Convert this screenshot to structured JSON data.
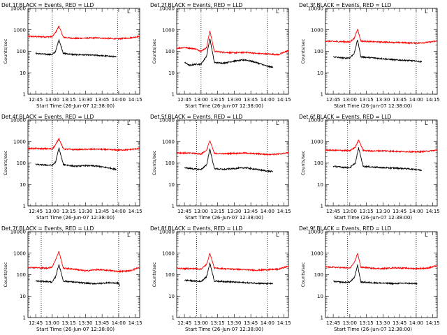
{
  "chart_data": [
    {
      "type": "line",
      "title": "Det 1f BLACK = Events, RED = LLD",
      "xlabel": "Start Time (26-Jun-07 12:38:00)",
      "ylabel": "Counts/sec",
      "xticks": [
        "12:45",
        "13:00",
        "13:15",
        "13:30",
        "13:45",
        "14:00",
        "14:15"
      ],
      "yticks": [
        "1",
        "10",
        "100",
        "1000",
        "10000"
      ],
      "xlim": [
        "12:38",
        "14:19"
      ],
      "ylim": [
        1,
        10000
      ],
      "yscale": "log",
      "vlines": [
        "13:00",
        "13:59"
      ],
      "marker": "L",
      "series": [
        {
          "color": "#ff0000",
          "x": [
            "12:38",
            "12:45",
            "12:55",
            "13:00",
            "13:03",
            "13:06",
            "13:10",
            "13:20",
            "13:30",
            "13:40",
            "13:50",
            "14:00",
            "14:10",
            "14:19"
          ],
          "values": [
            500,
            480,
            470,
            480,
            750,
            1500,
            450,
            400,
            410,
            420,
            400,
            380,
            420,
            500
          ]
        },
        {
          "color": "#000000",
          "x": [
            "12:45",
            "12:55",
            "13:00",
            "13:03",
            "13:06",
            "13:10",
            "13:20",
            "13:30",
            "13:40",
            "13:50",
            "13:58"
          ],
          "values": [
            80,
            72,
            70,
            100,
            350,
            80,
            70,
            68,
            65,
            60,
            55
          ]
        }
      ]
    },
    {
      "type": "line",
      "title": "Det 2f BLACK = Events, RED = LLD",
      "xlabel": "Start Time (26-Jun-07 12:38:00)",
      "ylabel": "Counts/sec",
      "xticks": [
        "12:45",
        "13:00",
        "13:15",
        "13:30",
        "13:45",
        "14:00",
        "14:15"
      ],
      "yticks": [
        "1",
        "10",
        "100",
        "1000",
        "10000"
      ],
      "xlim": [
        "12:38",
        "14:19"
      ],
      "ylim": [
        1,
        10000
      ],
      "yscale": "log",
      "vlines": [
        "13:00",
        "14:00"
      ],
      "marker": "L",
      "series": [
        {
          "color": "#ff0000",
          "x": [
            "12:38",
            "12:45",
            "12:55",
            "13:00",
            "13:05",
            "13:08",
            "13:12",
            "13:20",
            "13:30",
            "13:40",
            "13:50",
            "14:00",
            "14:10",
            "14:19"
          ],
          "values": [
            140,
            150,
            130,
            100,
            150,
            900,
            100,
            90,
            85,
            90,
            80,
            75,
            70,
            110
          ]
        },
        {
          "color": "#000000",
          "x": [
            "12:45",
            "12:50",
            "12:55",
            "13:00",
            "13:05",
            "13:08",
            "13:12",
            "13:20",
            "13:30",
            "13:40",
            "13:50",
            "14:00",
            "14:05"
          ],
          "values": [
            30,
            22,
            25,
            25,
            60,
            400,
            30,
            28,
            35,
            40,
            30,
            20,
            18
          ]
        }
      ]
    },
    {
      "type": "line",
      "title": "Det 3f BLACK = Events, RED = LLD",
      "xlabel": "Start Time (26-Jun-07 12:38:00)",
      "ylabel": "Counts/sec",
      "xticks": [
        "12:45",
        "13:00",
        "13:15",
        "13:30",
        "13:45",
        "14:00",
        "14:15"
      ],
      "yticks": [
        "1",
        "10",
        "100",
        "1000",
        "10000"
      ],
      "xlim": [
        "12:38",
        "14:19"
      ],
      "ylim": [
        1,
        10000
      ],
      "yscale": "log",
      "vlines": [
        "13:00",
        "14:00"
      ],
      "marker": "L",
      "series": [
        {
          "color": "#ff0000",
          "x": [
            "12:38",
            "12:45",
            "12:55",
            "13:00",
            "13:04",
            "13:07",
            "13:10",
            "13:20",
            "13:30",
            "13:40",
            "13:50",
            "14:00",
            "14:10",
            "14:19"
          ],
          "values": [
            300,
            290,
            280,
            270,
            400,
            1100,
            300,
            280,
            270,
            260,
            250,
            240,
            260,
            300
          ]
        },
        {
          "color": "#000000",
          "x": [
            "12:45",
            "12:55",
            "13:00",
            "13:04",
            "13:07",
            "13:10",
            "13:20",
            "13:30",
            "13:40",
            "13:50",
            "14:00",
            "14:05"
          ],
          "values": [
            55,
            48,
            50,
            80,
            350,
            55,
            50,
            45,
            40,
            38,
            35,
            32
          ]
        }
      ]
    },
    {
      "type": "line",
      "title": "Det 4f BLACK = Events, RED = LLD",
      "xlabel": "Start Time (26-Jun-07 12:38:00)",
      "ylabel": "Counts/sec",
      "xticks": [
        "12:45",
        "13:00",
        "13:15",
        "13:30",
        "13:45",
        "14:00",
        "14:15"
      ],
      "yticks": [
        "1",
        "10",
        "100",
        "1000",
        "10000"
      ],
      "xlim": [
        "12:38",
        "14:19"
      ],
      "ylim": [
        1,
        10000
      ],
      "yscale": "log",
      "vlines": [
        "13:00",
        "13:59"
      ],
      "marker": "L",
      "series": [
        {
          "color": "#ff0000",
          "x": [
            "12:38",
            "12:45",
            "12:55",
            "13:00",
            "13:03",
            "13:06",
            "13:10",
            "13:20",
            "13:30",
            "13:40",
            "13:50",
            "14:00",
            "14:10",
            "14:19"
          ],
          "values": [
            480,
            470,
            460,
            450,
            700,
            1400,
            450,
            420,
            430,
            440,
            420,
            400,
            420,
            480
          ]
        },
        {
          "color": "#000000",
          "x": [
            "12:45",
            "12:55",
            "13:00",
            "13:03",
            "13:06",
            "13:10",
            "13:20",
            "13:30",
            "13:40",
            "13:50",
            "13:58"
          ],
          "values": [
            85,
            80,
            78,
            110,
            500,
            85,
            70,
            75,
            72,
            60,
            50
          ]
        }
      ]
    },
    {
      "type": "line",
      "title": "Det 5f BLACK = Events, RED = LLD",
      "xlabel": "Start Time (26-Jun-07 12:38:00)",
      "ylabel": "Counts/sec",
      "xticks": [
        "12:45",
        "13:00",
        "13:15",
        "13:30",
        "13:45",
        "14:00",
        "14:15"
      ],
      "yticks": [
        "1",
        "10",
        "100",
        "1000",
        "10000"
      ],
      "xlim": [
        "12:38",
        "14:19"
      ],
      "ylim": [
        1,
        10000
      ],
      "yscale": "log",
      "vlines": [
        "12:56",
        "14:00"
      ],
      "marker": "L",
      "series": [
        {
          "color": "#ff0000",
          "x": [
            "12:38",
            "12:45",
            "12:55",
            "13:00",
            "13:05",
            "13:08",
            "13:12",
            "13:20",
            "13:30",
            "13:40",
            "13:50",
            "14:00",
            "14:10",
            "14:19"
          ],
          "values": [
            300,
            290,
            280,
            260,
            400,
            1100,
            280,
            270,
            280,
            290,
            270,
            250,
            260,
            300
          ]
        },
        {
          "color": "#000000",
          "x": [
            "12:45",
            "12:55",
            "13:00",
            "13:05",
            "13:08",
            "13:12",
            "13:20",
            "13:30",
            "13:40",
            "13:50",
            "14:00",
            "14:05"
          ],
          "values": [
            60,
            52,
            50,
            80,
            450,
            55,
            50,
            55,
            60,
            50,
            42,
            40
          ]
        }
      ]
    },
    {
      "type": "line",
      "title": "Det 6f BLACK = Events, RED = LLD",
      "xlabel": "Start Time (26-Jun-07 12:38:00)",
      "ylabel": "Counts/sec",
      "xticks": [
        "12:45",
        "13:00",
        "13:15",
        "13:30",
        "13:45",
        "14:00",
        "14:15"
      ],
      "yticks": [
        "1",
        "10",
        "100",
        "1000",
        "10000"
      ],
      "xlim": [
        "12:38",
        "14:19"
      ],
      "ylim": [
        1,
        10000
      ],
      "yscale": "log",
      "vlines": [
        "12:58",
        "14:00"
      ],
      "marker": "L",
      "series": [
        {
          "color": "#ff0000",
          "x": [
            "12:38",
            "12:45",
            "12:55",
            "13:00",
            "13:05",
            "13:08",
            "13:12",
            "13:20",
            "13:30",
            "13:40",
            "13:50",
            "14:00",
            "14:10",
            "14:19"
          ],
          "values": [
            400,
            390,
            380,
            370,
            550,
            1200,
            380,
            360,
            370,
            350,
            340,
            330,
            350,
            400
          ]
        },
        {
          "color": "#000000",
          "x": [
            "12:45",
            "12:55",
            "13:00",
            "13:05",
            "13:08",
            "13:12",
            "13:20",
            "13:30",
            "13:40",
            "13:50",
            "14:00",
            "14:05"
          ],
          "values": [
            70,
            62,
            60,
            100,
            500,
            70,
            65,
            60,
            58,
            55,
            50,
            45
          ]
        }
      ]
    },
    {
      "type": "line",
      "title": "Det 7f BLACK = Events, RED = LLD",
      "xlabel": "Start Time (26-Jun-07 12:38:00)",
      "ylabel": "Counts/sec",
      "xticks": [
        "12:45",
        "13:00",
        "13:15",
        "13:30",
        "13:45",
        "14:00",
        "14:15"
      ],
      "yticks": [
        "1",
        "10",
        "100",
        "1000",
        "10000"
      ],
      "xlim": [
        "12:38",
        "14:19"
      ],
      "ylim": [
        1,
        10000
      ],
      "yscale": "log",
      "vlines": [
        "12:50",
        "14:00"
      ],
      "marker": "L",
      "series": [
        {
          "color": "#ff0000",
          "x": [
            "12:38",
            "12:45",
            "12:55",
            "13:00",
            "13:03",
            "13:06",
            "13:10",
            "13:20",
            "13:30",
            "13:40",
            "13:50",
            "14:00",
            "14:10",
            "14:19"
          ],
          "values": [
            220,
            210,
            200,
            230,
            500,
            1200,
            200,
            180,
            150,
            170,
            160,
            140,
            150,
            220
          ]
        },
        {
          "color": "#000000",
          "x": [
            "12:45",
            "12:55",
            "13:00",
            "13:03",
            "13:06",
            "13:10",
            "13:20",
            "13:30",
            "13:40",
            "13:50",
            "14:00",
            "14:01"
          ],
          "values": [
            50,
            48,
            45,
            80,
            300,
            50,
            45,
            40,
            38,
            42,
            40,
            30
          ]
        }
      ]
    },
    {
      "type": "line",
      "title": "Det 8f BLACK = Events, RED = LLD",
      "xlabel": "Start Time (26-Jun-07 12:38:00)",
      "ylabel": "Counts/sec",
      "xticks": [
        "12:45",
        "13:00",
        "13:15",
        "13:30",
        "13:45",
        "14:00",
        "14:15"
      ],
      "yticks": [
        "1",
        "10",
        "100",
        "1000",
        "10000"
      ],
      "xlim": [
        "12:38",
        "14:19"
      ],
      "ylim": [
        1,
        10000
      ],
      "yscale": "log",
      "vlines": [
        "12:56",
        "14:00"
      ],
      "marker": "L",
      "series": [
        {
          "color": "#ff0000",
          "x": [
            "12:38",
            "12:45",
            "12:55",
            "13:00",
            "13:05",
            "13:08",
            "13:12",
            "13:20",
            "13:30",
            "13:40",
            "13:50",
            "14:00",
            "14:10",
            "14:19"
          ],
          "values": [
            200,
            190,
            190,
            180,
            300,
            1000,
            200,
            190,
            180,
            170,
            160,
            170,
            180,
            250
          ]
        },
        {
          "color": "#000000",
          "x": [
            "12:45",
            "12:55",
            "13:00",
            "13:05",
            "13:08",
            "13:12",
            "13:20",
            "13:30",
            "13:40",
            "13:50",
            "14:00",
            "14:05"
          ],
          "values": [
            55,
            50,
            48,
            80,
            350,
            50,
            48,
            45,
            42,
            40,
            38,
            38
          ]
        }
      ]
    },
    {
      "type": "line",
      "title": "Det 9f BLACK = Events, RED = LLD",
      "xlabel": "Start Time (26-Jun-07 12:38:00)",
      "ylabel": "Counts/sec",
      "xticks": [
        "12:45",
        "13:00",
        "13:15",
        "13:30",
        "13:45",
        "14:00",
        "14:15"
      ],
      "yticks": [
        "1",
        "10",
        "100",
        "1000",
        "10000"
      ],
      "xlim": [
        "12:38",
        "14:19"
      ],
      "ylim": [
        1,
        10000
      ],
      "yscale": "log",
      "vlines": [
        "12:58",
        "14:00"
      ],
      "marker": "L",
      "series": [
        {
          "color": "#ff0000",
          "x": [
            "12:38",
            "12:45",
            "12:55",
            "13:00",
            "13:04",
            "13:07",
            "13:10",
            "13:20",
            "13:30",
            "13:40",
            "13:50",
            "14:00",
            "14:10",
            "14:19"
          ],
          "values": [
            230,
            220,
            210,
            200,
            350,
            1000,
            220,
            200,
            190,
            210,
            200,
            190,
            200,
            260
          ]
        },
        {
          "color": "#000000",
          "x": [
            "12:45",
            "12:55",
            "13:00",
            "13:04",
            "13:07",
            "13:10",
            "13:20",
            "13:30",
            "13:40",
            "13:50",
            "14:00",
            "14:01"
          ],
          "values": [
            48,
            44,
            45,
            70,
            280,
            45,
            42,
            40,
            38,
            40,
            38,
            36
          ]
        }
      ]
    }
  ]
}
